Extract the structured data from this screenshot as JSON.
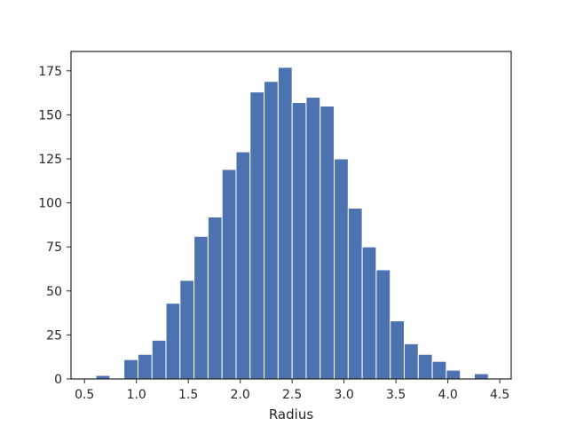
{
  "chart_data": {
    "type": "bar",
    "title": "",
    "xlabel": "Radius",
    "ylabel": "",
    "xlim": [
      0.37,
      4.61
    ],
    "ylim": [
      0,
      186
    ],
    "bar_color": "#4c72b0",
    "edge_color": "#ffffff",
    "bins": [
      {
        "x0": 0.61,
        "x1": 0.745,
        "count": 2
      },
      {
        "x0": 0.745,
        "x1": 0.88,
        "count": 0
      },
      {
        "x0": 0.88,
        "x1": 1.015,
        "count": 11
      },
      {
        "x0": 1.015,
        "x1": 1.15,
        "count": 14
      },
      {
        "x0": 1.15,
        "x1": 1.285,
        "count": 22
      },
      {
        "x0": 1.285,
        "x1": 1.42,
        "count": 43
      },
      {
        "x0": 1.42,
        "x1": 1.555,
        "count": 56
      },
      {
        "x0": 1.555,
        "x1": 1.69,
        "count": 81
      },
      {
        "x0": 1.69,
        "x1": 1.825,
        "count": 92
      },
      {
        "x0": 1.825,
        "x1": 1.96,
        "count": 119
      },
      {
        "x0": 1.96,
        "x1": 2.095,
        "count": 129
      },
      {
        "x0": 2.095,
        "x1": 2.23,
        "count": 163
      },
      {
        "x0": 2.23,
        "x1": 2.365,
        "count": 169
      },
      {
        "x0": 2.365,
        "x1": 2.5,
        "count": 177
      },
      {
        "x0": 2.5,
        "x1": 2.635,
        "count": 157
      },
      {
        "x0": 2.635,
        "x1": 2.77,
        "count": 160
      },
      {
        "x0": 2.77,
        "x1": 2.905,
        "count": 155
      },
      {
        "x0": 2.905,
        "x1": 3.04,
        "count": 125
      },
      {
        "x0": 3.04,
        "x1": 3.175,
        "count": 97
      },
      {
        "x0": 3.175,
        "x1": 3.31,
        "count": 75
      },
      {
        "x0": 3.31,
        "x1": 3.445,
        "count": 62
      },
      {
        "x0": 3.445,
        "x1": 3.58,
        "count": 33
      },
      {
        "x0": 3.58,
        "x1": 3.715,
        "count": 20
      },
      {
        "x0": 3.715,
        "x1": 3.85,
        "count": 14
      },
      {
        "x0": 3.85,
        "x1": 3.985,
        "count": 10
      },
      {
        "x0": 3.985,
        "x1": 4.12,
        "count": 5
      },
      {
        "x0": 4.12,
        "x1": 4.255,
        "count": 0
      },
      {
        "x0": 4.255,
        "x1": 4.39,
        "count": 3
      }
    ],
    "xticks": [
      "0.5",
      "1.0",
      "1.5",
      "2.0",
      "2.5",
      "3.0",
      "3.5",
      "4.0",
      "4.5"
    ],
    "yticks": [
      "0",
      "25",
      "50",
      "75",
      "100",
      "125",
      "150",
      "175"
    ],
    "grid": false
  }
}
